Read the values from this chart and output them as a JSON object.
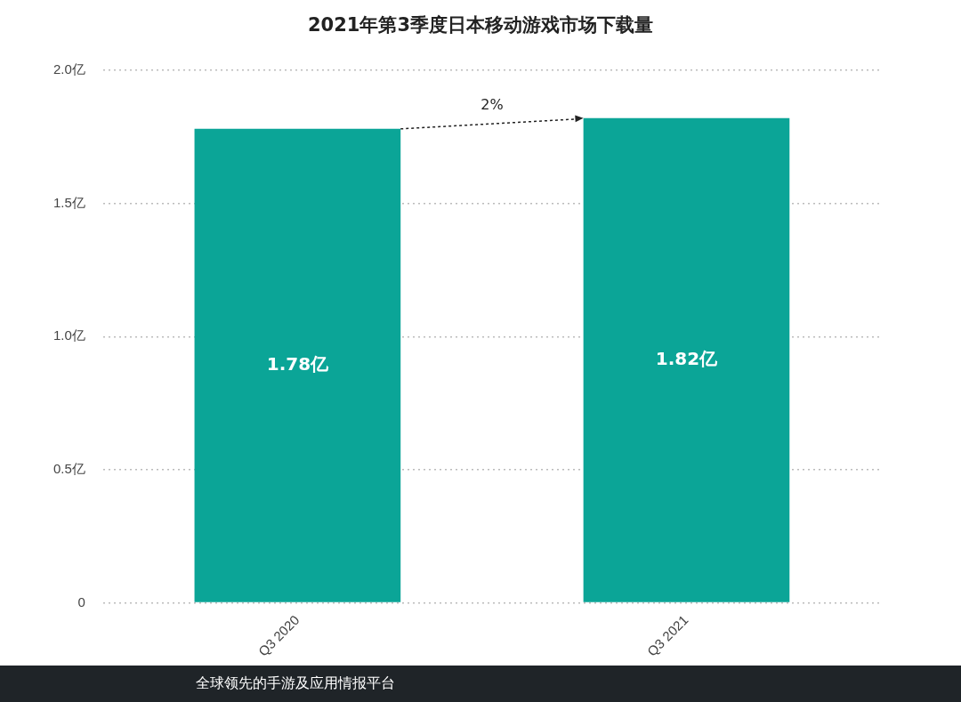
{
  "chart_data": {
    "type": "bar",
    "title": "2021年第3季度日本移动游戏市场下载量",
    "categories": [
      "Q3 2020",
      "Q3 2021"
    ],
    "values": [
      1.78,
      1.82
    ],
    "color": "#0ba597",
    "value_labels": [
      "1.78亿",
      "1.82亿"
    ],
    "ylim": [
      0,
      2.0
    ],
    "yticks": [
      0,
      {
        "value": 0.5,
        "label": "0.5亿"
      },
      {
        "value": 1.0,
        "label": "1.0亿"
      },
      {
        "value": 1.5,
        "label": "1.5亿"
      },
      {
        "value": 2.0,
        "label": "2.0亿"
      }
    ],
    "grid": "y",
    "legend": false,
    "annotations": [
      "2%",
      "全球领先的手游及应用情报平台"
    ]
  }
}
